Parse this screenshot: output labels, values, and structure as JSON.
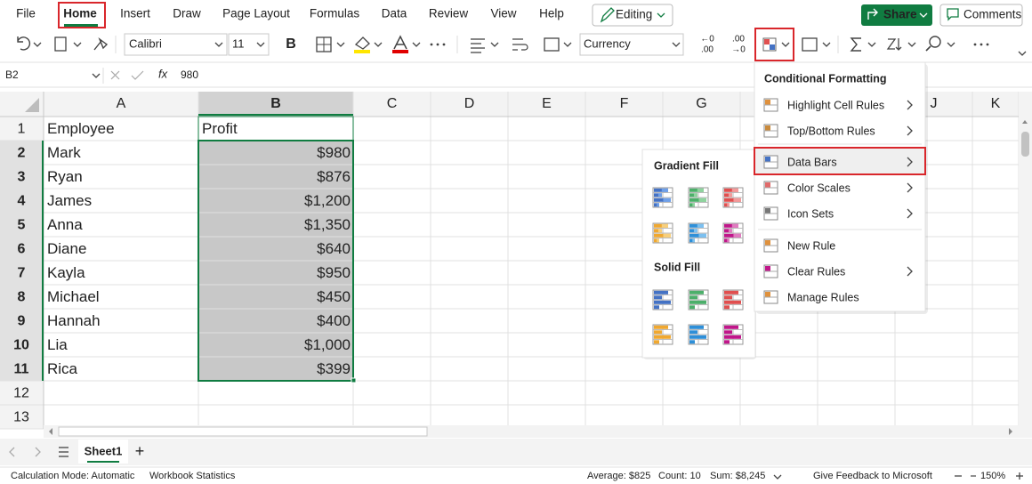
{
  "menu_bar": {
    "tabs": [
      "File",
      "Home",
      "Insert",
      "Draw",
      "Page Layout",
      "Formulas",
      "Data",
      "Review",
      "View",
      "Help"
    ],
    "editing": "Editing",
    "share": "Share",
    "comments": "Comments"
  },
  "toolbar": {
    "font": "Calibri",
    "font_size": "11",
    "bold": "B",
    "number_format": "Currency",
    "decimal_buttons": [
      [
        "←0",
        ".00"
      ],
      [
        ".00",
        "→0"
      ]
    ]
  },
  "formula_bar": {
    "name_box": "B2",
    "fx": "fx",
    "content": "980"
  },
  "sheet": {
    "columns": [
      "A",
      "B",
      "C",
      "D",
      "E",
      "F",
      "G",
      "J",
      "K"
    ],
    "row_numbers": [
      1,
      2,
      3,
      4,
      5,
      6,
      7,
      8,
      9,
      10,
      11,
      12,
      13
    ],
    "table": {
      "header": [
        "Employee",
        "Profit"
      ],
      "rows": [
        [
          "Mark",
          "$980"
        ],
        [
          "Ryan",
          "$876"
        ],
        [
          "James",
          "$1,200"
        ],
        [
          "Anna",
          "$1,350"
        ],
        [
          "Diane",
          "$640"
        ],
        [
          "Kayla",
          "$950"
        ],
        [
          "Michael",
          "$450"
        ],
        [
          "Hannah",
          "$400"
        ],
        [
          "Lia",
          "$1,000"
        ],
        [
          "Rica",
          "$399"
        ]
      ]
    }
  },
  "sheet_tabs": {
    "active": "Sheet1",
    "add": "+"
  },
  "status_bar": {
    "calculation_mode": "Calculation Mode: Automatic",
    "workbook_statistics": "Workbook Statistics",
    "average": "Average: $825",
    "count": "Count: 10",
    "sum": "Sum: $8,245",
    "feedback": "Give Feedback to Microsoft",
    "zoom": "150%"
  },
  "conditional_formatting_menu": {
    "title": "Conditional Formatting",
    "items": [
      "Highlight Cell Rules",
      "Top/Bottom Rules",
      "Data Bars",
      "Color Scales",
      "Icon Sets",
      "New Rule",
      "Clear Rules",
      "Manage Rules"
    ]
  },
  "data_bars_submenu": {
    "gradient_fill": "Gradient Fill",
    "solid_fill": "Solid Fill"
  }
}
